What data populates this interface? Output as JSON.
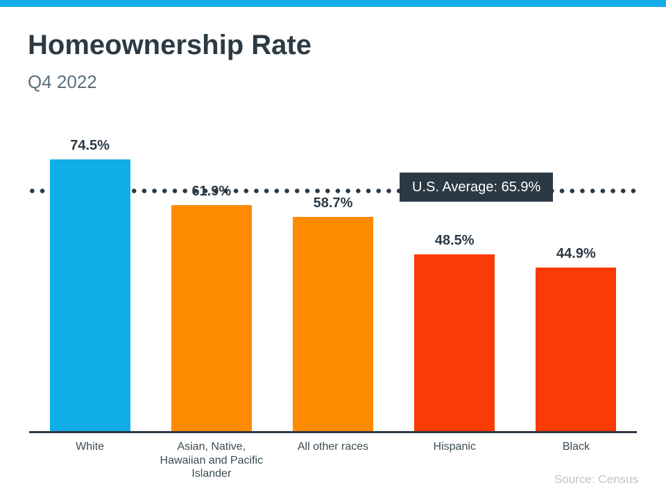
{
  "header": {
    "title": "Homeownership Rate",
    "subtitle": "Q4 2022"
  },
  "chart_data": {
    "type": "bar",
    "orientation": "vertical",
    "title": "Homeownership Rate",
    "subtitle": "Q4 2022",
    "categories": [
      "White",
      "Asian, Native, Hawaiian and Pacific Islander",
      "All other races",
      "Hispanic",
      "Black"
    ],
    "values": [
      74.5,
      61.9,
      58.7,
      48.5,
      44.9
    ],
    "value_labels": [
      "74.5%",
      "61.9%",
      "58.7%",
      "48.5%",
      "44.9%"
    ],
    "bar_colors": [
      "#10ade8",
      "#fd8a00",
      "#fd8a00",
      "#fb3b05",
      "#fb3b05"
    ],
    "average_line": {
      "label": "U.S. Average: 65.9%",
      "value": 65.9,
      "style": "dotted",
      "dot_color": "#2b3945",
      "badge_bg": "#2b3945",
      "badge_text_color": "#ffffff"
    },
    "ylim": [
      0,
      83.6
    ],
    "grid": false,
    "legend": false,
    "source": "Source: Census"
  },
  "colors": {
    "accent_bar": "#10ade8",
    "title_text": "#2c3a44",
    "subtitle_text": "#5a6f7c",
    "dark_text": "#2b3945",
    "category_text": "#3b4a52",
    "source_text": "#b8c4cb",
    "background": "#ffffff"
  }
}
